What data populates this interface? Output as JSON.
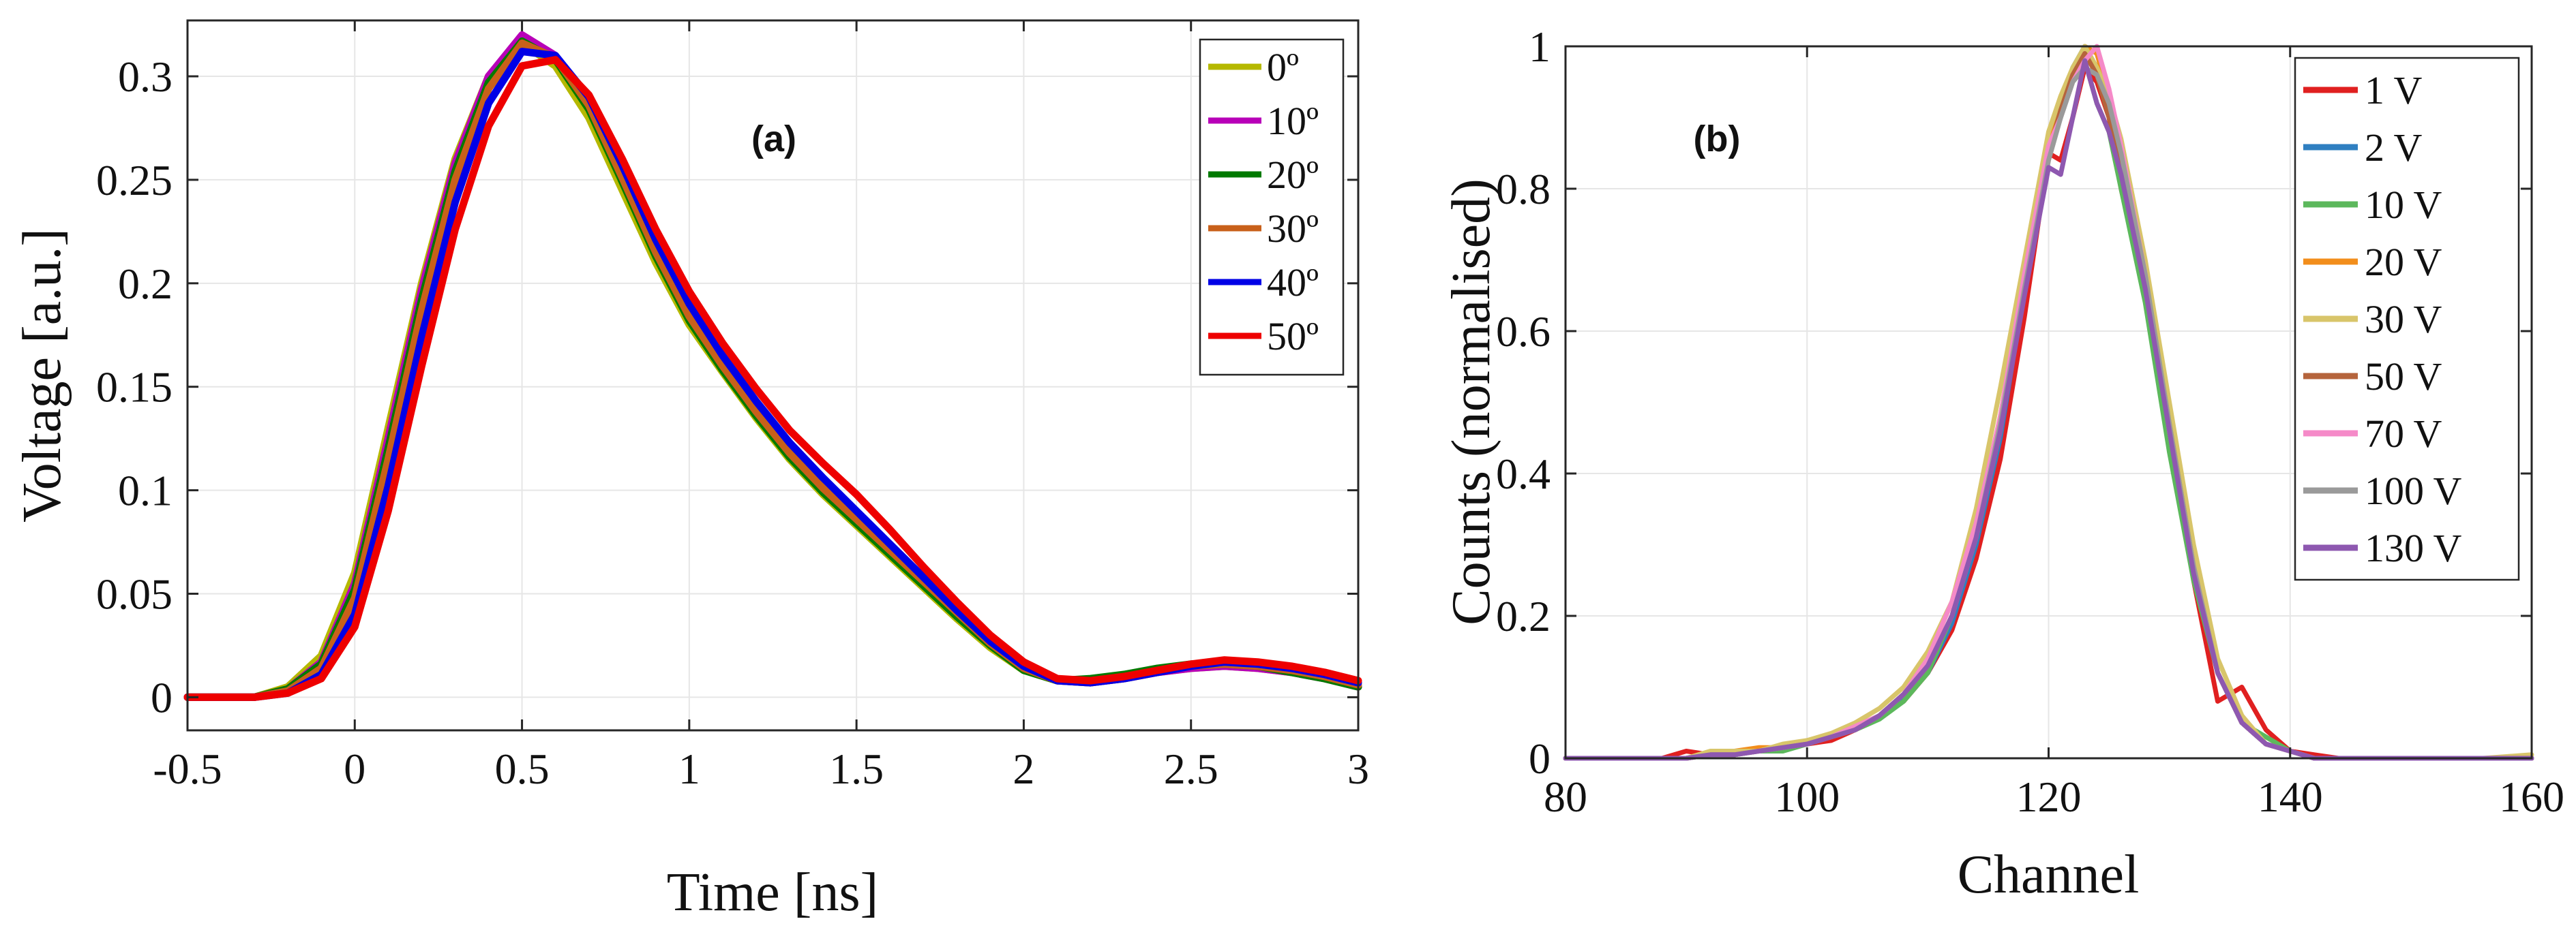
{
  "chart_data": [
    {
      "type": "line",
      "panel_label": "(a)",
      "xlabel": "Time [ns]",
      "ylabel": "Voltage [a.u.]",
      "xlim": [
        -0.5,
        3
      ],
      "ylim": [
        -0.016,
        0.327
      ],
      "xticks": [
        -0.5,
        0,
        0.5,
        1,
        1.5,
        2,
        2.5,
        3
      ],
      "xtick_labels": [
        "-0.5",
        "0",
        "0.5",
        "1",
        "1.5",
        "2",
        "2.5",
        "3"
      ],
      "yticks": [
        0,
        0.05,
        0.1,
        0.15,
        0.2,
        0.25,
        0.3
      ],
      "ytick_labels": [
        "0",
        "0.05",
        "0.1",
        "0.15",
        "0.2",
        "0.25",
        "0.3"
      ],
      "grid": true,
      "legend_position": "top-right",
      "series": [
        {
          "name": "0º",
          "color": "#b5b800",
          "x": [
            -0.5,
            -0.3,
            -0.2,
            -0.1,
            0,
            0.1,
            0.2,
            0.3,
            0.4,
            0.5,
            0.6,
            0.7,
            0.8,
            0.9,
            1,
            1.1,
            1.2,
            1.3,
            1.4,
            1.5,
            1.6,
            1.7,
            1.8,
            1.9,
            2,
            2.1,
            2.2,
            2.3,
            2.4,
            2.5,
            2.6,
            2.7,
            2.8,
            2.9,
            3
          ],
          "y": [
            0,
            0,
            0.005,
            0.02,
            0.06,
            0.13,
            0.2,
            0.26,
            0.3,
            0.316,
            0.305,
            0.28,
            0.245,
            0.21,
            0.18,
            0.157,
            0.135,
            0.115,
            0.098,
            0.083,
            0.068,
            0.053,
            0.038,
            0.024,
            0.013,
            0.008,
            0.007,
            0.009,
            0.012,
            0.014,
            0.015,
            0.014,
            0.012,
            0.009,
            0.005
          ]
        },
        {
          "name": "10º",
          "color": "#b800b8",
          "x": [
            -0.5,
            -0.3,
            -0.2,
            -0.1,
            0,
            0.1,
            0.2,
            0.3,
            0.4,
            0.5,
            0.6,
            0.7,
            0.8,
            0.9,
            1,
            1.1,
            1.2,
            1.3,
            1.4,
            1.5,
            1.6,
            1.7,
            1.8,
            1.9,
            2,
            2.1,
            2.2,
            2.3,
            2.4,
            2.5,
            2.6,
            2.7,
            2.8,
            2.9,
            3
          ],
          "y": [
            0,
            0,
            0.004,
            0.017,
            0.055,
            0.125,
            0.197,
            0.258,
            0.3,
            0.32,
            0.31,
            0.285,
            0.25,
            0.214,
            0.183,
            0.159,
            0.137,
            0.117,
            0.1,
            0.085,
            0.07,
            0.055,
            0.04,
            0.026,
            0.014,
            0.008,
            0.007,
            0.009,
            0.012,
            0.014,
            0.015,
            0.014,
            0.012,
            0.009,
            0.005
          ]
        },
        {
          "name": "20º",
          "color": "#007a00",
          "x": [
            -0.5,
            -0.3,
            -0.2,
            -0.1,
            0,
            0.1,
            0.2,
            0.3,
            0.4,
            0.5,
            0.6,
            0.7,
            0.8,
            0.9,
            1,
            1.1,
            1.2,
            1.3,
            1.4,
            1.5,
            1.6,
            1.7,
            1.8,
            1.9,
            2,
            2.1,
            2.2,
            2.3,
            2.4,
            2.5,
            2.6,
            2.7,
            2.8,
            2.9,
            3
          ],
          "y": [
            0,
            0,
            0.004,
            0.016,
            0.052,
            0.12,
            0.192,
            0.254,
            0.297,
            0.317,
            0.308,
            0.284,
            0.249,
            0.213,
            0.182,
            0.158,
            0.136,
            0.116,
            0.099,
            0.084,
            0.069,
            0.054,
            0.039,
            0.025,
            0.013,
            0.008,
            0.009,
            0.011,
            0.014,
            0.016,
            0.016,
            0.015,
            0.012,
            0.009,
            0.005
          ]
        },
        {
          "name": "30º",
          "color": "#c8601a",
          "x": [
            -0.5,
            -0.3,
            -0.2,
            -0.1,
            0,
            0.1,
            0.2,
            0.3,
            0.4,
            0.5,
            0.6,
            0.7,
            0.8,
            0.9,
            1,
            1.1,
            1.2,
            1.3,
            1.4,
            1.5,
            1.6,
            1.7,
            1.8,
            1.9,
            2,
            2.1,
            2.2,
            2.3,
            2.4,
            2.5,
            2.6,
            2.7,
            2.8,
            2.9,
            3
          ],
          "y": [
            0,
            0,
            0.003,
            0.014,
            0.048,
            0.115,
            0.187,
            0.25,
            0.294,
            0.316,
            0.309,
            0.286,
            0.251,
            0.215,
            0.184,
            0.16,
            0.138,
            0.118,
            0.101,
            0.086,
            0.071,
            0.056,
            0.041,
            0.026,
            0.014,
            0.008,
            0.007,
            0.009,
            0.012,
            0.015,
            0.016,
            0.015,
            0.013,
            0.01,
            0.006
          ]
        },
        {
          "name": "40º",
          "color": "#0000e6",
          "x": [
            -0.5,
            -0.3,
            -0.2,
            -0.1,
            0,
            0.1,
            0.2,
            0.3,
            0.4,
            0.5,
            0.6,
            0.7,
            0.8,
            0.9,
            1,
            1.1,
            1.2,
            1.3,
            1.4,
            1.5,
            1.6,
            1.7,
            1.8,
            1.9,
            2,
            2.1,
            2.2,
            2.3,
            2.4,
            2.5,
            2.6,
            2.7,
            2.8,
            2.9,
            3
          ],
          "y": [
            0,
            0,
            0.002,
            0.011,
            0.04,
            0.102,
            0.174,
            0.239,
            0.287,
            0.312,
            0.31,
            0.29,
            0.257,
            0.221,
            0.19,
            0.165,
            0.143,
            0.123,
            0.106,
            0.09,
            0.074,
            0.058,
            0.042,
            0.027,
            0.015,
            0.008,
            0.007,
            0.009,
            0.012,
            0.015,
            0.017,
            0.016,
            0.014,
            0.011,
            0.007
          ]
        },
        {
          "name": "50º",
          "color": "#ee0000",
          "x": [
            -0.5,
            -0.3,
            -0.2,
            -0.1,
            0,
            0.1,
            0.2,
            0.3,
            0.4,
            0.5,
            0.6,
            0.7,
            0.8,
            0.9,
            1,
            1.1,
            1.2,
            1.3,
            1.4,
            1.5,
            1.6,
            1.7,
            1.8,
            1.9,
            2,
            2.1,
            2.2,
            2.3,
            2.4,
            2.5,
            2.6,
            2.7,
            2.8,
            2.9,
            3
          ],
          "y": [
            0,
            0,
            0.002,
            0.009,
            0.034,
            0.09,
            0.16,
            0.226,
            0.276,
            0.305,
            0.308,
            0.291,
            0.26,
            0.226,
            0.196,
            0.171,
            0.149,
            0.129,
            0.113,
            0.098,
            0.081,
            0.063,
            0.046,
            0.03,
            0.017,
            0.009,
            0.008,
            0.01,
            0.013,
            0.016,
            0.018,
            0.017,
            0.015,
            0.012,
            0.008
          ]
        }
      ]
    },
    {
      "type": "line",
      "panel_label": "(b)",
      "xlabel": "Channel",
      "ylabel": "Counts (normalised)",
      "xlim": [
        80,
        160
      ],
      "ylim": [
        0,
        1
      ],
      "xticks": [
        80,
        100,
        120,
        140,
        160
      ],
      "xtick_labels": [
        "80",
        "100",
        "120",
        "140",
        "160"
      ],
      "yticks": [
        0,
        0.2,
        0.4,
        0.6,
        0.8,
        1
      ],
      "ytick_labels": [
        "0",
        "0.2",
        "0.4",
        "0.6",
        "0.8",
        "1"
      ],
      "grid": true,
      "legend_position": "top-right",
      "x": [
        80,
        84,
        88,
        90,
        92,
        94,
        96,
        98,
        100,
        102,
        104,
        106,
        108,
        110,
        112,
        114,
        116,
        118,
        120,
        121,
        122,
        123,
        124,
        125,
        126,
        128,
        130,
        132,
        134,
        136,
        138,
        140,
        142,
        144,
        148,
        152,
        156,
        160
      ],
      "series": [
        {
          "name": "1 V",
          "color": "#e02020",
          "values": [
            0,
            0,
            0,
            0.01,
            0.005,
            0.01,
            0.01,
            0.015,
            0.02,
            0.025,
            0.04,
            0.06,
            0.08,
            0.12,
            0.18,
            0.28,
            0.42,
            0.62,
            0.85,
            0.84,
            0.9,
            0.97,
            0.95,
            0.9,
            0.8,
            0.65,
            0.45,
            0.25,
            0.08,
            0.1,
            0.04,
            0.01,
            0.005,
            0,
            0,
            0,
            0,
            0
          ]
        },
        {
          "name": "2 V",
          "color": "#2f7fc1",
          "values": [
            0,
            0,
            0,
            0,
            0.005,
            0.01,
            0.01,
            0.015,
            0.02,
            0.03,
            0.04,
            0.06,
            0.085,
            0.12,
            0.19,
            0.3,
            0.45,
            0.66,
            0.85,
            0.9,
            0.97,
            1.0,
            0.97,
            0.92,
            0.82,
            0.65,
            0.44,
            0.26,
            0.12,
            0.05,
            0.02,
            0.01,
            0,
            0,
            0,
            0,
            0,
            0
          ]
        },
        {
          "name": "10 V",
          "color": "#5cb85c",
          "values": [
            0,
            0,
            0,
            0,
            0.005,
            0.005,
            0.01,
            0.01,
            0.02,
            0.03,
            0.04,
            0.055,
            0.08,
            0.12,
            0.2,
            0.31,
            0.46,
            0.67,
            0.86,
            0.9,
            0.95,
            0.98,
            0.92,
            0.88,
            0.8,
            0.64,
            0.43,
            0.25,
            0.12,
            0.05,
            0.03,
            0.01,
            0,
            0,
            0,
            0,
            0,
            0
          ]
        },
        {
          "name": "20 V",
          "color": "#f28e1c",
          "values": [
            0,
            0,
            0,
            0,
            0.005,
            0.01,
            0.015,
            0.015,
            0.025,
            0.03,
            0.04,
            0.06,
            0.09,
            0.13,
            0.2,
            0.31,
            0.46,
            0.67,
            0.86,
            0.91,
            0.96,
            1.0,
            0.99,
            0.93,
            0.83,
            0.67,
            0.46,
            0.27,
            0.12,
            0.05,
            0.02,
            0.01,
            0,
            0,
            0,
            0,
            0,
            0
          ]
        },
        {
          "name": "30 V",
          "color": "#d8c56a",
          "values": [
            0,
            0,
            0,
            0,
            0.01,
            0.01,
            0.01,
            0.02,
            0.025,
            0.035,
            0.05,
            0.07,
            0.1,
            0.15,
            0.22,
            0.35,
            0.52,
            0.7,
            0.88,
            0.93,
            0.97,
            1.0,
            0.97,
            0.93,
            0.87,
            0.7,
            0.5,
            0.3,
            0.14,
            0.06,
            0.02,
            0.01,
            0,
            0,
            0,
            0,
            0,
            0.005
          ]
        },
        {
          "name": "50 V",
          "color": "#b5643c",
          "values": [
            0,
            0,
            0,
            0,
            0.005,
            0.005,
            0.01,
            0.015,
            0.02,
            0.03,
            0.04,
            0.06,
            0.09,
            0.13,
            0.2,
            0.32,
            0.48,
            0.67,
            0.85,
            0.91,
            0.96,
            0.99,
            0.96,
            0.9,
            0.84,
            0.67,
            0.47,
            0.27,
            0.12,
            0.05,
            0.02,
            0.01,
            0,
            0,
            0,
            0,
            0,
            0
          ]
        },
        {
          "name": "70 V",
          "color": "#f58ac8",
          "values": [
            0,
            0,
            0,
            0,
            0.005,
            0.005,
            0.01,
            0.015,
            0.02,
            0.03,
            0.045,
            0.06,
            0.09,
            0.14,
            0.22,
            0.33,
            0.48,
            0.68,
            0.86,
            0.9,
            0.95,
            0.98,
            1.0,
            0.94,
            0.86,
            0.68,
            0.46,
            0.27,
            0.12,
            0.05,
            0.02,
            0.01,
            0,
            0,
            0,
            0,
            0,
            0
          ]
        },
        {
          "name": "100 V",
          "color": "#9a9a9a",
          "values": [
            0,
            0,
            0,
            0,
            0.005,
            0.005,
            0.01,
            0.015,
            0.02,
            0.03,
            0.04,
            0.06,
            0.09,
            0.13,
            0.2,
            0.31,
            0.47,
            0.66,
            0.84,
            0.9,
            0.95,
            0.97,
            0.96,
            0.92,
            0.85,
            0.68,
            0.47,
            0.27,
            0.12,
            0.05,
            0.02,
            0.01,
            0,
            0,
            0,
            0,
            0,
            0
          ]
        },
        {
          "name": "130 V",
          "color": "#8e58b0",
          "values": [
            0,
            0,
            0,
            0,
            0.005,
            0.005,
            0.01,
            0.015,
            0.02,
            0.03,
            0.04,
            0.06,
            0.09,
            0.13,
            0.2,
            0.31,
            0.46,
            0.65,
            0.83,
            0.82,
            0.9,
            0.98,
            0.92,
            0.88,
            0.82,
            0.66,
            0.46,
            0.26,
            0.12,
            0.05,
            0.02,
            0.01,
            0,
            0,
            0,
            0,
            0,
            0
          ]
        }
      ]
    }
  ]
}
